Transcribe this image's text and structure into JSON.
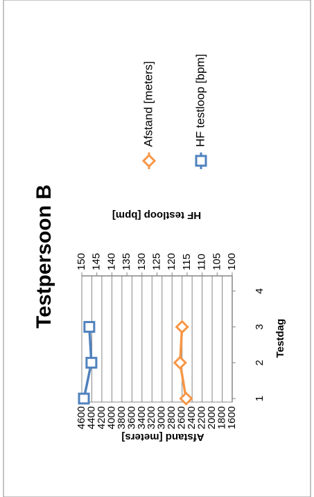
{
  "chart_data": {
    "type": "line",
    "title": "Testpersoon B",
    "x_label": "Testdag",
    "y_label": "Afstand [meters]",
    "y2_label": "HF testloop [bpm]",
    "categories": [
      "1",
      "2",
      "3",
      "4"
    ],
    "series": [
      {
        "name": "Afstand [meters]",
        "color": "#f79646",
        "marker": "diamond",
        "values": [
          2520,
          2640,
          2600,
          null
        ]
      },
      {
        "name": "HF testloop [bpm]",
        "color": "#4f81bd",
        "marker": "square",
        "axis": "y2",
        "values": [
          149.3,
          146.8,
          147.5,
          null
        ]
      }
    ],
    "ylim": [
      1600,
      4600
    ],
    "yticks": [
      1600,
      1800,
      2000,
      2200,
      2400,
      2600,
      2800,
      3000,
      3200,
      3400,
      3600,
      3800,
      4000,
      4200,
      4400,
      4600
    ],
    "y2lim": [
      100,
      150
    ],
    "y2ticks": [
      100,
      105,
      110,
      115,
      120,
      125,
      130,
      135,
      140,
      145,
      150
    ],
    "grid": true
  }
}
